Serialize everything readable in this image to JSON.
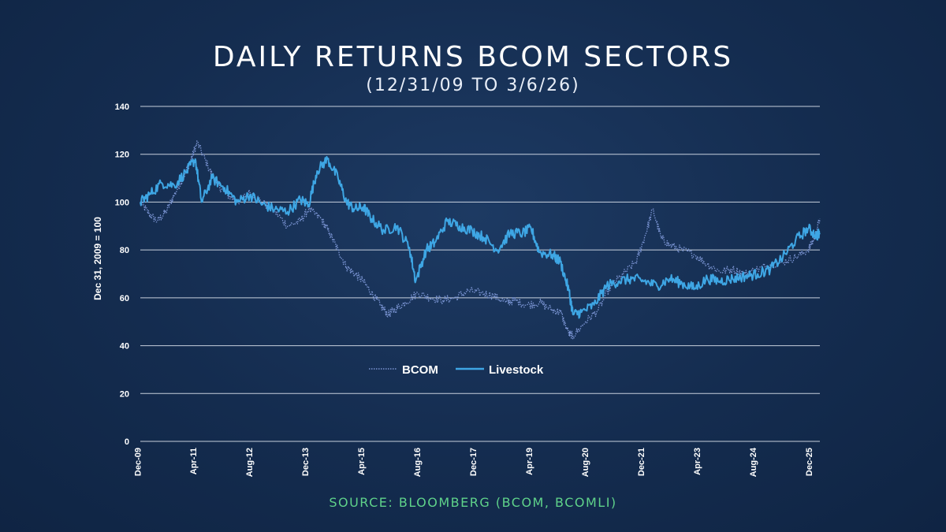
{
  "title": "DAILY RETURNS BCOM SECTORS",
  "subtitle": "(12/31/09 TO 3/6/26)",
  "source": "SOURCE: BLOOMBERG (BCOM, BCOMLI)",
  "colors": {
    "bcom": "#7b95d4",
    "livestock": "#3ea6e4",
    "grid": "#e6ecf5",
    "source": "#5fd28a"
  },
  "chart_data": {
    "type": "line",
    "ylabel": "Dec 31, 2009 = 100",
    "ylim": [
      0,
      140
    ],
    "yticks": [
      0,
      20,
      40,
      60,
      80,
      100,
      120,
      140
    ],
    "xlim": [
      2009.99,
      2026.18
    ],
    "xticks": [
      {
        "label": "Dec-09",
        "x": 2009.92
      },
      {
        "label": "Apr-11",
        "x": 2011.25
      },
      {
        "label": "Aug-12",
        "x": 2012.58
      },
      {
        "label": "Dec-13",
        "x": 2013.92
      },
      {
        "label": "Apr-15",
        "x": 2015.25
      },
      {
        "label": "Aug-16",
        "x": 2016.58
      },
      {
        "label": "Dec-17",
        "x": 2017.92
      },
      {
        "label": "Apr-19",
        "x": 2019.25
      },
      {
        "label": "Aug-20",
        "x": 2020.58
      },
      {
        "label": "Dec-21",
        "x": 2021.92
      },
      {
        "label": "Apr-23",
        "x": 2023.25
      },
      {
        "label": "Aug-24",
        "x": 2024.58
      },
      {
        "label": "Dec-25",
        "x": 2025.92
      }
    ],
    "grid": true,
    "legend": "center",
    "series": [
      {
        "name": "BCOM",
        "style": "dotted",
        "x": [
          2009.99,
          2010.2,
          2010.4,
          2010.6,
          2010.8,
          2011.0,
          2011.2,
          2011.35,
          2011.6,
          2011.8,
          2012.0,
          2012.3,
          2012.6,
          2012.9,
          2013.2,
          2013.5,
          2013.8,
          2014.0,
          2014.3,
          2014.5,
          2014.7,
          2014.9,
          2015.1,
          2015.3,
          2015.5,
          2015.7,
          2015.9,
          2016.05,
          2016.3,
          2016.6,
          2016.9,
          2017.2,
          2017.5,
          2017.8,
          2018.1,
          2018.4,
          2018.7,
          2018.9,
          2019.2,
          2019.5,
          2019.8,
          2020.0,
          2020.2,
          2020.3,
          2020.6,
          2020.9,
          2021.2,
          2021.5,
          2021.8,
          2022.0,
          2022.2,
          2022.4,
          2022.6,
          2022.9,
          2023.2,
          2023.5,
          2023.8,
          2024.1,
          2024.4,
          2024.7,
          2025.0,
          2025.3,
          2025.6,
          2025.9,
          2026.05,
          2026.18
        ],
        "y": [
          100,
          95,
          92,
          96,
          103,
          110,
          118,
          125,
          115,
          108,
          104,
          100,
          104,
          100,
          96,
          90,
          92,
          97,
          93,
          87,
          80,
          73,
          70,
          67,
          62,
          57,
          53,
          55,
          58,
          62,
          60,
          59,
          60,
          63,
          62,
          61,
          58,
          59,
          57,
          58,
          55,
          54,
          45,
          44,
          50,
          55,
          65,
          70,
          75,
          85,
          97,
          85,
          82,
          80,
          78,
          74,
          71,
          72,
          70,
          72,
          74,
          75,
          77,
          80,
          85,
          93
        ]
      },
      {
        "name": "Livestock",
        "style": "solid",
        "x": [
          2009.99,
          2010.2,
          2010.5,
          2010.8,
          2011.1,
          2011.3,
          2011.45,
          2011.7,
          2012.0,
          2012.3,
          2012.6,
          2012.9,
          2013.2,
          2013.5,
          2013.8,
          2014.0,
          2014.2,
          2014.45,
          2014.7,
          2014.9,
          2015.1,
          2015.3,
          2015.5,
          2015.8,
          2016.1,
          2016.4,
          2016.55,
          2016.8,
          2017.0,
          2017.3,
          2017.6,
          2017.9,
          2018.2,
          2018.5,
          2018.8,
          2019.1,
          2019.3,
          2019.5,
          2019.8,
          2020.0,
          2020.2,
          2020.3,
          2020.5,
          2020.8,
          2021.1,
          2021.4,
          2021.7,
          2022.0,
          2022.3,
          2022.6,
          2022.9,
          2023.2,
          2023.5,
          2023.8,
          2024.1,
          2024.4,
          2024.7,
          2025.0,
          2025.3,
          2025.6,
          2025.9,
          2026.1,
          2026.18
        ],
        "y": [
          100,
          103,
          108,
          107,
          113,
          118,
          100,
          110,
          106,
          100,
          103,
          99,
          97,
          96,
          101,
          99,
          113,
          118,
          110,
          100,
          97,
          98,
          93,
          88,
          90,
          81,
          67,
          80,
          83,
          92,
          90,
          88,
          85,
          80,
          87,
          87,
          89,
          79,
          78,
          75,
          63,
          53,
          54,
          57,
          65,
          67,
          68,
          67,
          65,
          68,
          66,
          64,
          68,
          67,
          68,
          69,
          70,
          72,
          77,
          84,
          89,
          86,
          87
        ]
      }
    ]
  }
}
